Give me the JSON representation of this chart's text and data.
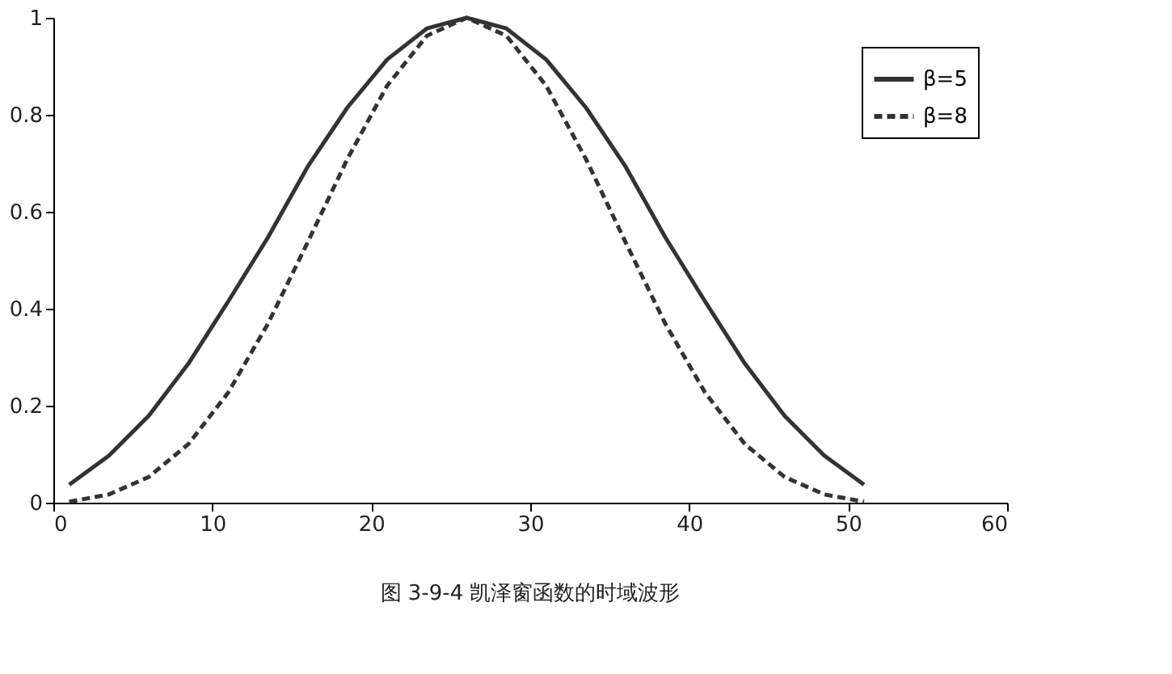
{
  "chart_data": {
    "type": "line",
    "x": [
      1,
      3.5,
      6,
      8.5,
      11,
      13.5,
      16,
      18.5,
      21,
      23.5,
      26,
      28.5,
      31,
      33.5,
      36,
      38.5,
      41,
      43.5,
      46,
      48.5,
      51
    ],
    "series": [
      {
        "name": "β=5",
        "color": "#333333",
        "line_style": "solid",
        "values": [
          0.037,
          0.097,
          0.179,
          0.287,
          0.415,
          0.547,
          0.693,
          0.815,
          0.914,
          0.978,
          1,
          0.978,
          0.914,
          0.815,
          0.693,
          0.547,
          0.415,
          0.287,
          0.179,
          0.097,
          0.037
        ]
      },
      {
        "name": "β=8",
        "color": "#333333",
        "line_style": "dashed",
        "values": [
          0.002,
          0.017,
          0.053,
          0.121,
          0.227,
          0.369,
          0.537,
          0.709,
          0.86,
          0.963,
          1,
          0.963,
          0.86,
          0.709,
          0.537,
          0.369,
          0.227,
          0.121,
          0.053,
          0.017,
          0.002
        ]
      }
    ],
    "xlim": [
      0,
      60
    ],
    "xticks": [
      0,
      10,
      20,
      30,
      40,
      50,
      60
    ],
    "ylim": [
      0,
      1
    ],
    "yticks": [
      0,
      0.2,
      0.4,
      0.6,
      0.8,
      1
    ],
    "grid": false,
    "legend": "top right",
    "marker": "none",
    "annotations": [
      "图 3-9-4  凯泽窗函数的时域波形"
    ]
  }
}
